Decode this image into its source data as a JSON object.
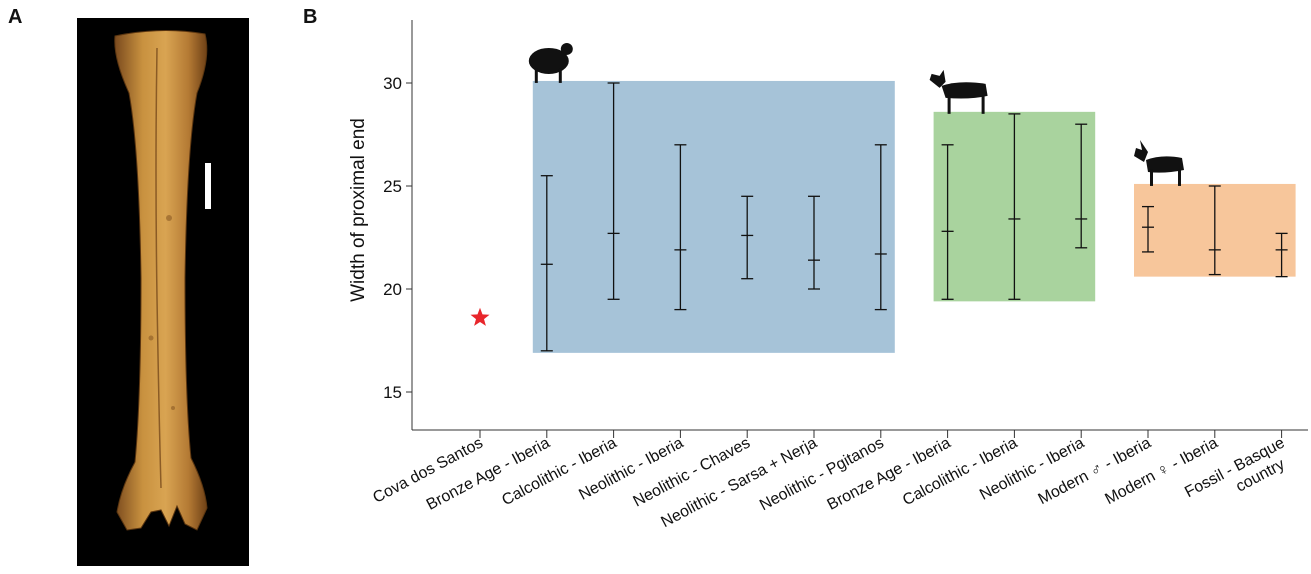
{
  "panels": {
    "a_label": "A",
    "b_label": "B"
  },
  "chart_data": {
    "type": "errorbar",
    "ylabel": "Width of proximal end",
    "ylim": [
      13,
      33
    ],
    "yticks": [
      15,
      20,
      25,
      30
    ],
    "categories": [
      "Cova dos Santos",
      "Bronze Age - Iberia",
      "Calcolithic - Iberia",
      "Neolithic - Iberia",
      "Neolithic - Chaves",
      "Neolithic - Sarsa + Nerja",
      "Neolithic - Pgitanos",
      "Bronze Age - Iberia",
      "Calcolithic - Iberia",
      "Neolithic - Iberia",
      "Modern ♂ - Iberia",
      "Modern ♀ - Iberia",
      "Fossil - Basque country"
    ],
    "point": {
      "category_index": 0,
      "value": 18.6,
      "marker": "star",
      "color": "#e8262b"
    },
    "groups": [
      {
        "icon": "sheep-icon",
        "color": "#a6c3d8",
        "from": 1,
        "to": 6,
        "ymin": 16.9,
        "ymax": 30.1
      },
      {
        "icon": "goat-icon",
        "color": "#a9d39e",
        "from": 7,
        "to": 9,
        "ymin": 19.4,
        "ymax": 28.6
      },
      {
        "icon": "ibex-icon",
        "color": "#f7c69b",
        "from": 10,
        "to": 12,
        "ymin": 20.6,
        "ymax": 25.1
      }
    ],
    "ranges": [
      {
        "category_index": 1,
        "min": 17.0,
        "mean": 21.2,
        "max": 25.5
      },
      {
        "category_index": 2,
        "min": 19.5,
        "mean": 22.7,
        "max": 30.0
      },
      {
        "category_index": 3,
        "min": 19.0,
        "mean": 21.9,
        "max": 27.0
      },
      {
        "category_index": 4,
        "min": 20.5,
        "mean": 22.6,
        "max": 24.5
      },
      {
        "category_index": 5,
        "min": 20.0,
        "mean": 21.4,
        "max": 24.5
      },
      {
        "category_index": 6,
        "min": 19.0,
        "mean": 21.7,
        "max": 27.0
      },
      {
        "category_index": 7,
        "min": 19.5,
        "mean": 22.8,
        "max": 27.0
      },
      {
        "category_index": 8,
        "min": 19.5,
        "mean": 23.4,
        "max": 28.5
      },
      {
        "category_index": 9,
        "min": 22.0,
        "mean": 23.4,
        "max": 28.0
      },
      {
        "category_index": 10,
        "min": 21.8,
        "mean": 23.0,
        "max": 24.0
      },
      {
        "category_index": 11,
        "min": 20.7,
        "mean": 21.9,
        "max": 25.0
      },
      {
        "category_index": 12,
        "min": 20.6,
        "mean": 21.9,
        "max": 22.7
      }
    ]
  }
}
